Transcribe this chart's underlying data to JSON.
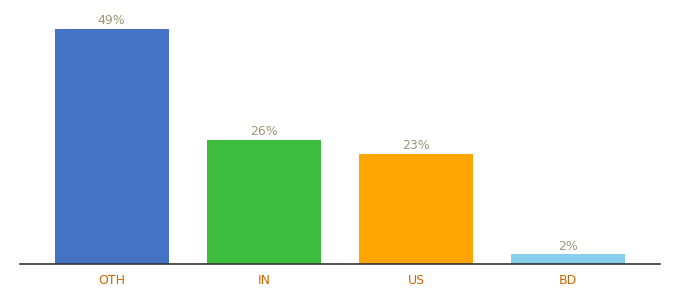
{
  "categories": [
    "OTH",
    "IN",
    "US",
    "BD"
  ],
  "values": [
    49,
    26,
    23,
    2
  ],
  "bar_colors": [
    "#4472C4",
    "#3DBD3D",
    "#FFA500",
    "#87CEEB"
  ],
  "labels": [
    "49%",
    "26%",
    "23%",
    "2%"
  ],
  "label_color": "#999977",
  "xlabel_color": "#CC6600",
  "background_color": "#ffffff",
  "ylim": [
    0,
    52
  ],
  "bar_width": 0.75,
  "label_fontsize": 9,
  "xlabel_fontsize": 9
}
